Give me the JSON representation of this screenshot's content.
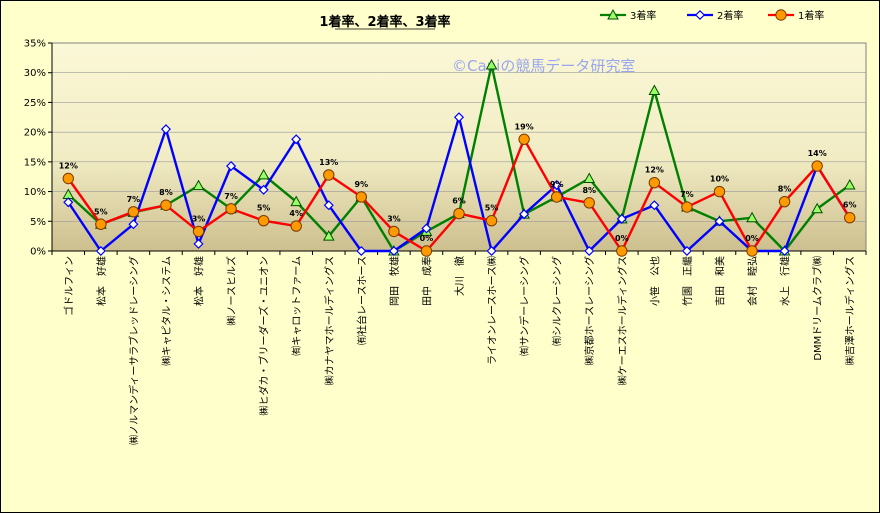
{
  "chart_data": {
    "type": "line",
    "title": "1着率、2着率、3着率",
    "watermark": "©Caniの競馬データ研究室",
    "categories": [
      "ゴドルフィン",
      "松本　好雄",
      "㈱ノルマンディーサラブレッドレーシング",
      "㈱キャピタル・システム",
      "松本　好雄",
      "㈱ノースヒルズ",
      "㈱ヒダカ・ブリーダーズ・ユニオン",
      "㈲キャロットファーム",
      "㈱カナヤマホールディングス",
      "㈲社台レースホース",
      "岡田　牧雄",
      "田中　成奉",
      "大川　徹",
      "ライオンレースホース㈱",
      "㈲サンデーレーシング",
      "㈲シルクレーシング",
      "㈱京都ホースレーシング",
      "㈱ケーエスホールディングス",
      "小笹　公也",
      "竹園　正繼",
      "吉田　和美",
      "会村　睦弘",
      "水上　行雄",
      "DMMドリームクラブ㈱",
      "㈱吉澤ホールディングス"
    ],
    "ylim": [
      0,
      35
    ],
    "yticks": [
      "0%",
      "5%",
      "10%",
      "15%",
      "20%",
      "25%",
      "30%",
      "35%"
    ],
    "grid": true,
    "legend_position": "top-right",
    "series": [
      {
        "name": "3着率",
        "color": "#008000",
        "marker": "triangle",
        "values": [
          9.5,
          4.5,
          6.5,
          7.7,
          11,
          7.1,
          12.8,
          8.3,
          2.5,
          9.1,
          0,
          3.3,
          6.3,
          31.3,
          6.2,
          9.1,
          12.2,
          5.4,
          27,
          7.4,
          5,
          5.6,
          0,
          7.1,
          11.1
        ]
      },
      {
        "name": "2着率",
        "color": "#0000ff",
        "marker": "diamond",
        "values": [
          8.2,
          0,
          4.5,
          20.5,
          1.2,
          14.3,
          10.3,
          18.8,
          7.7,
          0,
          0,
          3.8,
          22.5,
          0,
          6.2,
          11.1,
          0,
          5.4,
          7.7,
          0,
          5,
          0,
          0,
          14.3,
          5.6
        ]
      },
      {
        "name": "1着率",
        "color": "#ff0000",
        "marker": "circle",
        "values": [
          12.2,
          4.5,
          6.6,
          7.7,
          3.3,
          7.1,
          5.1,
          4.2,
          12.8,
          9.1,
          3.3,
          0,
          6.3,
          5.1,
          18.8,
          9.1,
          8.1,
          0,
          11.5,
          7.4,
          10,
          0,
          8.3,
          14.3,
          5.6
        ],
        "labels": [
          "12%",
          "5%",
          "7%",
          "8%",
          "3%",
          "7%",
          "5%",
          "4%",
          "13%",
          "9%",
          "3%",
          "0%",
          "6%",
          "5%",
          "19%",
          "9%",
          "8%",
          "0%",
          "12%",
          "7%",
          "10%",
          "0%",
          "8%",
          "14%",
          "6%"
        ]
      }
    ]
  }
}
